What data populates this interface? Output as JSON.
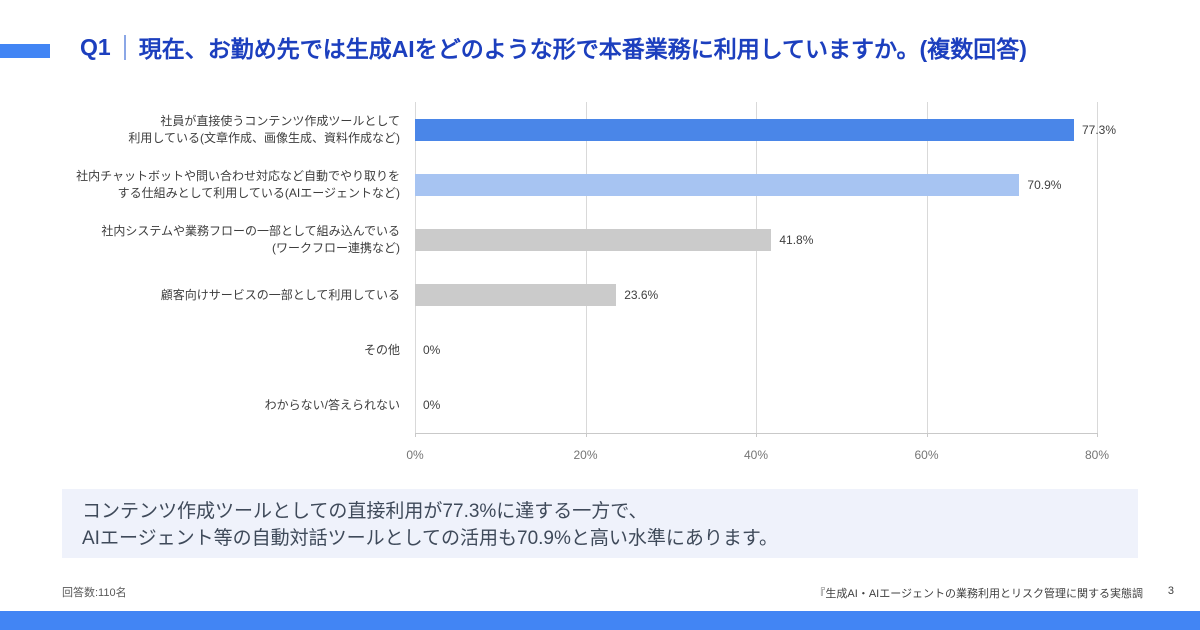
{
  "header": {
    "q_label": "Q1",
    "title": "現在、お勤め先では生成AIをどのような形で本番業務に利用していますか。(複数回答)"
  },
  "chart_data": {
    "type": "bar",
    "orientation": "horizontal",
    "categories": [
      "社員が直接使うコンテンツ作成ツールとして\n利用している(文章作成、画像生成、資料作成など)",
      "社内チャットボットや問い合わせ対応など自動でやり取りを\nする仕組みとして利用している(AIエージェントなど)",
      "社内システムや業務フローの一部として組み込んでいる\n(ワークフロー連携など)",
      "顧客向けサービスの一部として利用している",
      "その他",
      "わからない/答えられない"
    ],
    "values": [
      77.3,
      70.9,
      41.8,
      23.6,
      0,
      0
    ],
    "value_labels": [
      "77.3%",
      "70.9%",
      "41.8%",
      "23.6%",
      "0%",
      "0%"
    ],
    "bar_colors": [
      "#4a86e8",
      "#a7c4f2",
      "#cbcbcb",
      "#cbcbcb",
      "#cbcbcb",
      "#cbcbcb"
    ],
    "x_ticks": [
      "0%",
      "20%",
      "40%",
      "60%",
      "80%"
    ],
    "xlim": [
      0,
      80
    ],
    "grid": true,
    "legend": false,
    "title": "",
    "xlabel": "",
    "ylabel": ""
  },
  "summary": {
    "lines": [
      "コンテンツ作成ツールとしての直接利用が77.3%に達する一方で、",
      "AIエージェント等の自動対話ツールとしての活用も70.9%と高い水準にあります。"
    ]
  },
  "footer": {
    "respondents": "回答数:110名",
    "source": "『生成AI・AIエージェントの業務利用とリスク管理に関する実態調",
    "page": "3"
  },
  "colors": {
    "accent_blue": "#4285f4",
    "title_blue": "#1c3fbe",
    "bar_primary": "#4a86e8",
    "bar_secondary": "#a7c4f2",
    "bar_gray": "#cbcbcb",
    "summary_bg": "#eff2fb"
  }
}
